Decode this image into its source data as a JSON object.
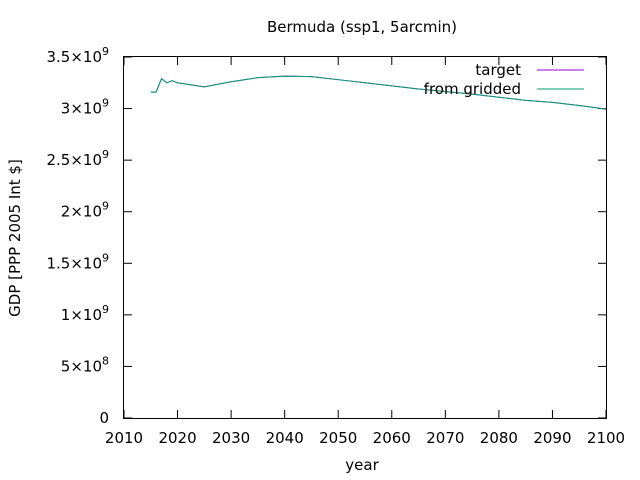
{
  "chart_data": {
    "type": "line",
    "title": "Bermuda (ssp1, 5arcmin)",
    "xlabel": "year",
    "ylabel": "GDP [PPP 2005 Int $]",
    "xlim": [
      2010,
      2100
    ],
    "ylim": [
      0,
      3500000000
    ],
    "x_ticks": [
      {
        "value": 2010,
        "label": "2010"
      },
      {
        "value": 2020,
        "label": "2020"
      },
      {
        "value": 2030,
        "label": "2030"
      },
      {
        "value": 2040,
        "label": "2040"
      },
      {
        "value": 2050,
        "label": "2050"
      },
      {
        "value": 2060,
        "label": "2060"
      },
      {
        "value": 2070,
        "label": "2070"
      },
      {
        "value": 2080,
        "label": "2080"
      },
      {
        "value": 2090,
        "label": "2090"
      },
      {
        "value": 2100,
        "label": "2100"
      }
    ],
    "y_ticks": [
      {
        "value": 0,
        "mant": "0",
        "exp": ""
      },
      {
        "value": 500000000,
        "mant": "5×10",
        "exp": "8"
      },
      {
        "value": 1000000000,
        "mant": "1×10",
        "exp": "9"
      },
      {
        "value": 1500000000,
        "mant": "1.5×10",
        "exp": "9"
      },
      {
        "value": 2000000000,
        "mant": "2×10",
        "exp": "9"
      },
      {
        "value": 2500000000,
        "mant": "2.5×10",
        "exp": "9"
      },
      {
        "value": 3000000000,
        "mant": "3×10",
        "exp": "9"
      },
      {
        "value": 3500000000,
        "mant": "3.5×10",
        "exp": "9"
      }
    ],
    "legend_position": "top-right",
    "grid": false,
    "series": [
      {
        "name": "target",
        "color": "#9400d3",
        "x": [
          2015,
          2016,
          2017,
          2018,
          2019,
          2020,
          2025,
          2030,
          2035,
          2040,
          2045,
          2050,
          2055,
          2060,
          2065,
          2070,
          2075,
          2080,
          2085,
          2090,
          2095,
          2100
        ],
        "y": [
          3160000000,
          3160000000,
          3290000000,
          3250000000,
          3270000000,
          3250000000,
          3210000000,
          3260000000,
          3300000000,
          3315000000,
          3310000000,
          3280000000,
          3250000000,
          3220000000,
          3190000000,
          3165000000,
          3140000000,
          3110000000,
          3080000000,
          3060000000,
          3030000000,
          2995000000
        ]
      },
      {
        "name": "from gridded",
        "color": "#009e73",
        "x": [
          2015,
          2016,
          2017,
          2018,
          2019,
          2020,
          2025,
          2030,
          2035,
          2040,
          2045,
          2050,
          2055,
          2060,
          2065,
          2070,
          2075,
          2080,
          2085,
          2090,
          2095,
          2100
        ],
        "y": [
          3160000000,
          3160000000,
          3290000000,
          3250000000,
          3270000000,
          3250000000,
          3210000000,
          3260000000,
          3300000000,
          3315000000,
          3310000000,
          3280000000,
          3250000000,
          3220000000,
          3190000000,
          3165000000,
          3140000000,
          3110000000,
          3080000000,
          3060000000,
          3030000000,
          2995000000
        ]
      }
    ]
  }
}
